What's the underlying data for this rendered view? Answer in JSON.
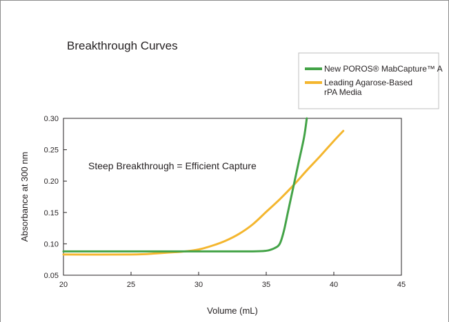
{
  "chart_data": {
    "type": "line",
    "title": "Breakthrough Curves",
    "xlabel": "Volume (mL)",
    "ylabel": "Absorbance at 300 nm",
    "xlim": [
      20,
      45
    ],
    "ylim": [
      0.05,
      0.3
    ],
    "xticks": [
      "20",
      "25",
      "30",
      "35",
      "40",
      "45"
    ],
    "yticks": [
      "0.05",
      "0.10",
      "0.15",
      "0.20",
      "0.25",
      "0.30"
    ],
    "grid": false,
    "legend_position": "top-right",
    "annotation": "Steep Breakthrough = Efficient Capture",
    "series": [
      {
        "name": "New POROS® MabCapture™ A",
        "color": "#43a347",
        "x": [
          20,
          25,
          30,
          34,
          35,
          35.6,
          36,
          36.3,
          36.6,
          37,
          37.4,
          37.8,
          38
        ],
        "y": [
          0.088,
          0.088,
          0.088,
          0.088,
          0.089,
          0.093,
          0.1,
          0.12,
          0.15,
          0.19,
          0.23,
          0.27,
          0.3
        ]
      },
      {
        "name": "Leading Agarose-Based rPA Media",
        "color": "#f4b62e",
        "x": [
          20,
          25,
          27,
          29,
          30,
          31,
          32,
          33,
          34,
          35,
          36,
          37,
          38,
          39,
          40,
          40.7
        ],
        "y": [
          0.083,
          0.083,
          0.085,
          0.088,
          0.091,
          0.097,
          0.105,
          0.116,
          0.131,
          0.151,
          0.171,
          0.193,
          0.217,
          0.24,
          0.264,
          0.28
        ]
      }
    ]
  }
}
